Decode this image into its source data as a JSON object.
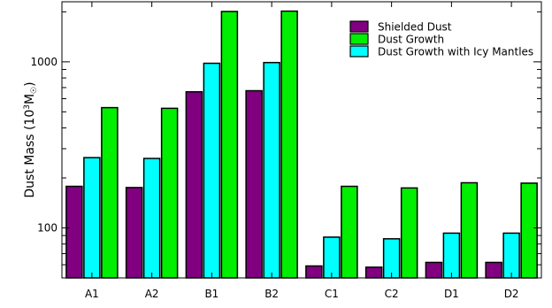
{
  "chart_data": {
    "type": "bar",
    "title": "",
    "xlabel": "",
    "ylabel_main": "Dust Mass (10",
    "ylabel_sup": "3",
    "ylabel_unit": "M",
    "ylabel_sym": "☉",
    "ylabel_close": ")",
    "y_scale": "log",
    "ylim": [
      50,
      2300
    ],
    "y_tick_labels": [
      "100",
      "1000"
    ],
    "y_major_ticks": [
      100,
      1000
    ],
    "y_minor_ticks": [
      50,
      60,
      70,
      80,
      90,
      200,
      300,
      400,
      500,
      600,
      700,
      800,
      900,
      2000
    ],
    "grid": false,
    "legend_position": "top-right",
    "categories": [
      "A1",
      "A2",
      "B1",
      "B2",
      "C1",
      "C2",
      "D1",
      "D2"
    ],
    "series": [
      {
        "name": "Shielded Dust",
        "color": "#800080",
        "values": [
          178,
          175,
          660,
          670,
          59,
          58,
          62,
          62
        ]
      },
      {
        "name": "Dust Growth",
        "color": "#00ee00",
        "values": [
          530,
          525,
          2010,
          2020,
          178,
          174,
          187,
          186
        ]
      },
      {
        "name": "Dust Growth with Icy Mantles",
        "color": "#00ffff",
        "values": [
          265,
          262,
          980,
          990,
          88,
          86,
          93,
          93
        ]
      }
    ],
    "bar_order": [
      0,
      2,
      1
    ]
  }
}
